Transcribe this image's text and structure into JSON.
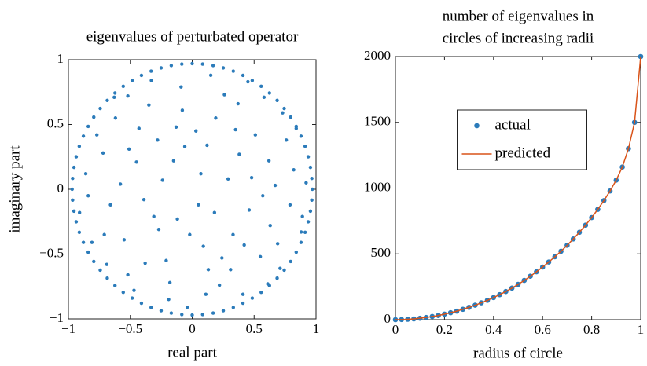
{
  "chart_data": [
    {
      "type": "scatter",
      "title": "eigenvalues of perturbated operator",
      "xlabel": "real part",
      "ylabel": "imaginary part",
      "color": "#2b7bba",
      "xlim": [
        -1,
        1
      ],
      "ylim": [
        -1,
        1
      ],
      "xticks": [
        {
          "value": -1,
          "label": "−1"
        },
        {
          "value": -0.5,
          "label": "−0.5"
        },
        0,
        0.5,
        1
      ],
      "yticks": [
        {
          "value": -1,
          "label": "−1"
        },
        {
          "value": -0.5,
          "label": "−0.5"
        },
        0,
        0.5,
        1
      ],
      "x": [
        0.97,
        0.966,
        0.955,
        0.937,
        0.912,
        0.879,
        0.84,
        0.795,
        0.743,
        0.686,
        0.624,
        0.557,
        0.485,
        0.41,
        0.332,
        0.251,
        0.169,
        0.084,
        0,
        -0.084,
        -0.169,
        -0.251,
        -0.332,
        -0.41,
        -0.485,
        -0.557,
        -0.624,
        -0.686,
        -0.743,
        -0.795,
        -0.84,
        -0.879,
        -0.912,
        -0.937,
        -0.955,
        -0.966,
        -0.97,
        -0.966,
        -0.955,
        -0.937,
        -0.912,
        -0.879,
        -0.84,
        -0.795,
        -0.743,
        -0.686,
        -0.624,
        -0.557,
        -0.485,
        -0.41,
        -0.332,
        -0.251,
        -0.169,
        -0.084,
        0,
        0.084,
        0.169,
        0.251,
        0.332,
        0.41,
        0.485,
        0.557,
        0.624,
        0.686,
        0.743,
        0.795,
        0.84,
        0.879,
        0.912,
        0.937,
        0.955,
        0.966,
        0.12,
        -0.45,
        0.63,
        -0.18,
        0.37,
        -0.71,
        0.05,
        0.82,
        -0.33,
        0.51,
        -0.62,
        0.24,
        -0.08,
        0.71,
        -0.86,
        0.41,
        -0.27,
        0.15,
        -0.52,
        0.88,
        -0.04,
        0.29,
        -0.77,
        0.58,
        -0.39,
        0.67,
        -0.15,
        0.09,
        -0.58,
        0.46,
        -0.21,
        0.33,
        -0.66,
        0.19,
        -0.43,
        0.76,
        -0.09,
        0.55,
        -0.81,
        0.03,
        0.92,
        -0.35,
        0.22,
        -0.55,
        0.62,
        -0.12,
        0.38,
        -0.72,
        0.13,
        -0.47,
        0.79,
        -0.28,
        0.45,
        -0.91,
        0.07,
        0.57,
        -0.19,
        0.31,
        -0.63,
        0.84,
        -0.02,
        0.26,
        -0.38,
        0.69,
        -0.84,
        0.48,
        -0.24,
        0.11,
        -0.51,
        0.35,
        -0.69,
        0.18,
        -0.13,
        0.73,
        -0.31,
        0.61,
        -0.52,
        0.42,
        -0.06,
        0.89
      ],
      "values": [
        0,
        0.084,
        0.169,
        0.251,
        0.332,
        0.41,
        0.485,
        0.557,
        0.624,
        0.686,
        0.743,
        0.795,
        0.84,
        0.879,
        0.912,
        0.937,
        0.955,
        0.966,
        0.97,
        0.966,
        0.955,
        0.937,
        0.912,
        0.879,
        0.84,
        0.795,
        0.743,
        0.686,
        0.624,
        0.557,
        0.485,
        0.41,
        0.332,
        0.251,
        0.169,
        0.084,
        0,
        -0.084,
        -0.169,
        -0.251,
        -0.332,
        -0.41,
        -0.485,
        -0.557,
        -0.624,
        -0.686,
        -0.743,
        -0.795,
        -0.84,
        -0.879,
        -0.912,
        -0.937,
        -0.955,
        -0.966,
        -0.97,
        -0.966,
        -0.955,
        -0.937,
        -0.912,
        -0.879,
        -0.84,
        -0.795,
        -0.743,
        -0.686,
        -0.624,
        -0.557,
        -0.485,
        -0.41,
        -0.332,
        -0.251,
        -0.169,
        -0.084,
        0.34,
        0.21,
        -0.28,
        -0.72,
        0.66,
        -0.35,
        -0.12,
        0.15,
        0.84,
        0.42,
        0.55,
        -0.53,
        0.61,
        -0.61,
        0.12,
        -0.81,
        -0.31,
        0.88,
        -0.66,
        -0.33,
        -0.91,
        0.08,
        0.42,
        0.71,
        -0.08,
        0.03,
        0.22,
        -0.44,
        0.04,
        -0.16,
        -0.55,
        -0.35,
        -0.12,
        0.55,
        0.47,
        0.38,
        0.79,
        -0.52,
        -0.41,
        0.45,
        0.05,
        0.65,
        -0.74,
        -0.39,
        0.22,
        -0.23,
        0.27,
        0.28,
        -0.62,
        -0.78,
        -0.12,
        0.38,
        0.83,
        -0.18,
        0.12,
        -0.05,
        -0.85,
        -0.62,
        0.71,
        0.47,
        -0.35,
        0.73,
        -0.57,
        -0.42,
        -0.05,
        0.09,
        0.07,
        -0.81,
        0.31,
        0.46,
        -0.58,
        -0.18,
        0.48,
        0.59,
        -0.21,
        -0.73,
        0.72,
        -0.43,
        0.33,
        -0.21
      ]
    },
    {
      "type": "line",
      "title": [
        "number of eigenvalues in",
        "circles of increasing radii"
      ],
      "xlabel": "radius of circle",
      "xlim": [
        0,
        1
      ],
      "ylim": [
        0,
        2000
      ],
      "xticks": [
        0,
        0.2,
        0.4,
        0.6,
        0.8,
        1
      ],
      "yticks": [
        0,
        500,
        1000,
        1500,
        2000
      ],
      "legend": "upper center",
      "x": [
        0,
        0.025,
        0.05,
        0.075,
        0.1,
        0.125,
        0.15,
        0.175,
        0.2,
        0.225,
        0.25,
        0.275,
        0.3,
        0.325,
        0.35,
        0.375,
        0.4,
        0.425,
        0.45,
        0.475,
        0.5,
        0.525,
        0.55,
        0.575,
        0.6,
        0.625,
        0.65,
        0.675,
        0.7,
        0.725,
        0.75,
        0.775,
        0.8,
        0.825,
        0.85,
        0.875,
        0.9,
        0.925,
        0.95,
        0.975,
        1
      ],
      "series": [
        {
          "name": "actual",
          "color": "#2b7bba",
          "mode": "markers",
          "values": [
            0,
            1,
            3,
            6,
            11,
            17,
            24,
            32,
            42,
            53,
            65,
            79,
            94,
            110,
            128,
            147,
            168,
            190,
            214,
            240,
            268,
            298,
            330,
            364,
            400,
            438,
            478,
            520,
            565,
            613,
            664,
            718,
            776,
            838,
            905,
            978,
            1060,
            1160,
            1300,
            1500,
            2000
          ]
        },
        {
          "name": "predicted",
          "color": "#d95319",
          "mode": "line",
          "values": [
            0,
            1,
            3,
            6,
            11,
            17,
            24,
            32,
            42,
            53,
            65,
            79,
            94,
            110,
            128,
            147,
            168,
            190,
            214,
            240,
            268,
            298,
            330,
            364,
            400,
            438,
            478,
            520,
            565,
            613,
            664,
            718,
            776,
            838,
            905,
            978,
            1060,
            1160,
            1300,
            1500,
            2000
          ]
        }
      ]
    }
  ]
}
